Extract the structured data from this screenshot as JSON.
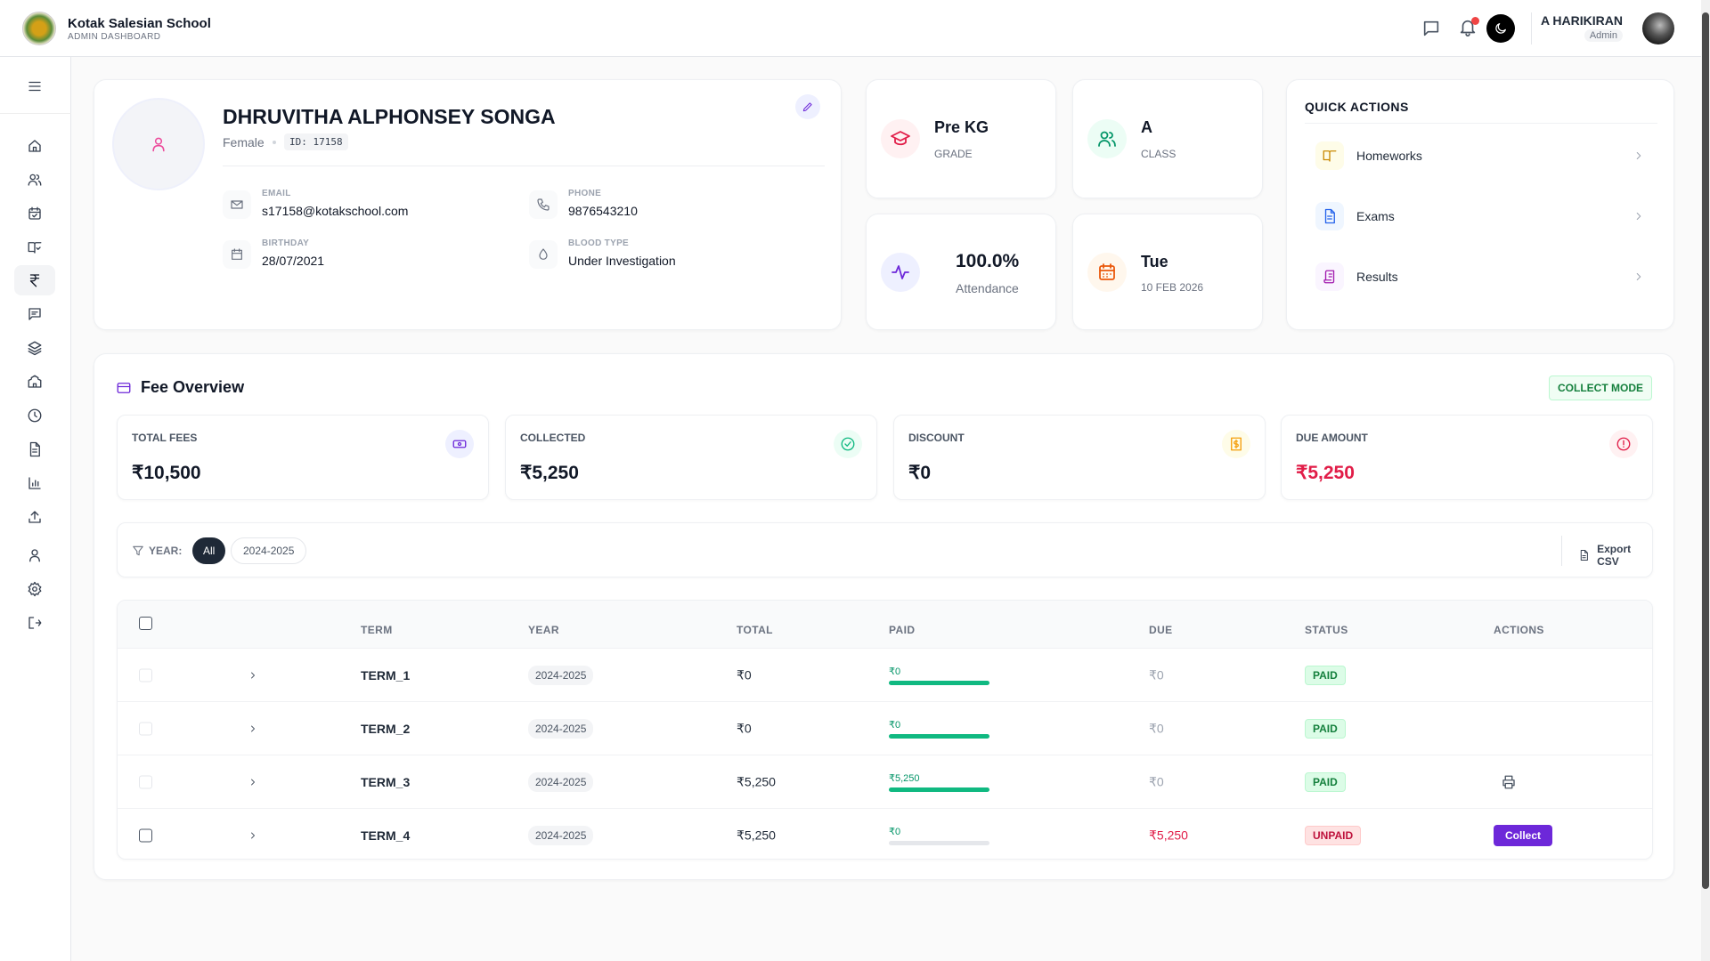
{
  "header": {
    "school_name": "Kotak Salesian School",
    "subtitle": "ADMIN DASHBOARD",
    "user_name": "A HARIKIRAN",
    "user_role": "Admin"
  },
  "sidebar": {
    "items": [
      {
        "icon": "home-icon"
      },
      {
        "icon": "users-icon"
      },
      {
        "icon": "calendar-check-icon"
      },
      {
        "icon": "book-check-icon"
      },
      {
        "icon": "rupee-icon",
        "active": true
      },
      {
        "icon": "message-icon"
      },
      {
        "icon": "layers-icon"
      },
      {
        "icon": "school-icon"
      },
      {
        "icon": "clock-icon"
      },
      {
        "icon": "file-text-icon"
      },
      {
        "icon": "bar-chart-icon"
      },
      {
        "icon": "upload-icon"
      },
      {
        "icon": "user-icon"
      },
      {
        "icon": "settings-icon"
      },
      {
        "icon": "logout-icon"
      }
    ]
  },
  "profile": {
    "name": "DHRUVITHA ALPHONSEY SONGA",
    "gender": "Female",
    "id_label": "ID: 17158",
    "email_label": "EMAIL",
    "email": "s17158@kotakschool.com",
    "phone_label": "PHONE",
    "phone": "9876543210",
    "birthday_label": "BIRTHDAY",
    "birthday": "28/07/2021",
    "blood_label": "BLOOD TYPE",
    "blood": "Under Investigation"
  },
  "info_cards": {
    "grade": {
      "value": "Pre KG",
      "label": "GRADE"
    },
    "class": {
      "value": "A",
      "label": "CLASS"
    },
    "attendance": {
      "value": "100.0%",
      "label": "Attendance"
    },
    "date": {
      "value": "Tue",
      "label": "10 FEB 2026"
    }
  },
  "quick_actions": {
    "title": "QUICK ACTIONS",
    "items": [
      {
        "label": "Homeworks"
      },
      {
        "label": "Exams"
      },
      {
        "label": "Results"
      }
    ]
  },
  "fees": {
    "title": "Fee Overview",
    "mode_label": "COLLECT MODE",
    "stats": [
      {
        "label": "TOTAL FEES",
        "value": "₹10,500"
      },
      {
        "label": "COLLECTED",
        "value": "₹5,250"
      },
      {
        "label": "DISCOUNT",
        "value": "₹0"
      },
      {
        "label": "DUE AMOUNT",
        "value": "₹5,250"
      }
    ],
    "filter": {
      "label": "YEAR:",
      "options": [
        "All",
        "2024-2025"
      ],
      "selected": "All",
      "export_label": "Export CSV"
    },
    "table": {
      "columns": [
        "TERM",
        "YEAR",
        "TOTAL",
        "PAID",
        "DUE",
        "STATUS",
        "ACTIONS"
      ],
      "rows": [
        {
          "term": "TERM_1",
          "year": "2024-2025",
          "total": "₹0",
          "paid": "₹0",
          "paid_pct": 100,
          "due": "₹0",
          "status": "PAID"
        },
        {
          "term": "TERM_2",
          "year": "2024-2025",
          "total": "₹0",
          "paid": "₹0",
          "paid_pct": 100,
          "due": "₹0",
          "status": "PAID"
        },
        {
          "term": "TERM_3",
          "year": "2024-2025",
          "total": "₹5,250",
          "paid": "₹5,250",
          "paid_pct": 100,
          "due": "₹0",
          "status": "PAID",
          "action": "print"
        },
        {
          "term": "TERM_4",
          "year": "2024-2025",
          "total": "₹5,250",
          "paid": "₹0",
          "paid_pct": 0,
          "due": "₹5,250",
          "status": "UNPAID",
          "action": "Collect"
        }
      ]
    }
  },
  "colors": {
    "accent": "#6d28d9",
    "paid": "#10b981",
    "due": "#e11d48"
  }
}
